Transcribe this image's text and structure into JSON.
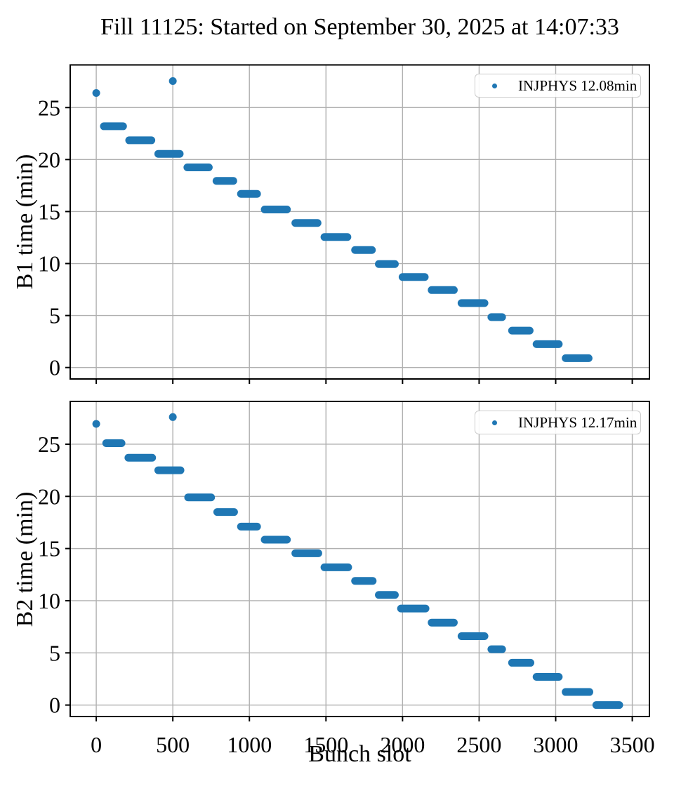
{
  "figure": {
    "title": "Fill 11125: Started on September 30, 2025 at 14:07:33",
    "background_color": "#ffffff",
    "accent_color": "#1f77b4",
    "grid_color": "#b0b0b0",
    "spine_color": "#000000"
  },
  "chart_data": [
    {
      "type": "scatter",
      "subplot": "top",
      "ylabel": "B1 time (min)",
      "xlabel": "",
      "legend_label": "INJPHYS 12.08min",
      "legend_position": "upper right",
      "grid": true,
      "marker_color": "#1f77b4",
      "xlim": [
        -170,
        3612
      ],
      "ylim": [
        -1.1,
        29.1
      ],
      "x_ticks": [
        0,
        500,
        1000,
        1500,
        2000,
        2500,
        3000,
        3500
      ],
      "y_ticks": [
        0,
        5,
        10,
        15,
        20,
        25
      ],
      "lone_points": [
        [
          0,
          26.4
        ],
        [
          500,
          27.55
        ]
      ],
      "steps": [
        [
          50,
          175,
          23.2
        ],
        [
          215,
          360,
          21.85
        ],
        [
          405,
          545,
          20.55
        ],
        [
          595,
          735,
          19.25
        ],
        [
          785,
          895,
          17.95
        ],
        [
          945,
          1050,
          16.7
        ],
        [
          1100,
          1245,
          15.2
        ],
        [
          1300,
          1445,
          13.9
        ],
        [
          1490,
          1640,
          12.55
        ],
        [
          1690,
          1800,
          11.3
        ],
        [
          1845,
          1950,
          9.95
        ],
        [
          2000,
          2145,
          8.7
        ],
        [
          2190,
          2335,
          7.45
        ],
        [
          2385,
          2535,
          6.2
        ],
        [
          2580,
          2650,
          4.85
        ],
        [
          2715,
          2830,
          3.55
        ],
        [
          2875,
          3020,
          2.25
        ],
        [
          3065,
          3215,
          0.9
        ]
      ]
    },
    {
      "type": "scatter",
      "subplot": "bottom",
      "ylabel": "B2 time (min)",
      "xlabel": "Bunch slot",
      "legend_label": "INJPHYS 12.17min",
      "legend_position": "upper right",
      "grid": true,
      "marker_color": "#1f77b4",
      "xlim": [
        -170,
        3612
      ],
      "ylim": [
        -1.1,
        29.1
      ],
      "x_ticks": [
        0,
        500,
        1000,
        1500,
        2000,
        2500,
        3000,
        3500
      ],
      "y_ticks": [
        0,
        5,
        10,
        15,
        20,
        25
      ],
      "lone_points": [
        [
          0,
          26.95
        ],
        [
          500,
          27.6
        ]
      ],
      "steps": [
        [
          65,
          165,
          25.1
        ],
        [
          210,
          365,
          23.7
        ],
        [
          405,
          550,
          22.5
        ],
        [
          600,
          750,
          19.9
        ],
        [
          790,
          900,
          18.5
        ],
        [
          945,
          1050,
          17.1
        ],
        [
          1100,
          1245,
          15.85
        ],
        [
          1300,
          1450,
          14.55
        ],
        [
          1490,
          1645,
          13.2
        ],
        [
          1690,
          1805,
          11.9
        ],
        [
          1845,
          1950,
          10.55
        ],
        [
          1990,
          2150,
          9.25
        ],
        [
          2190,
          2335,
          7.9
        ],
        [
          2385,
          2535,
          6.6
        ],
        [
          2580,
          2650,
          5.35
        ],
        [
          2715,
          2835,
          4.05
        ],
        [
          2875,
          3020,
          2.7
        ],
        [
          3065,
          3220,
          1.25
        ],
        [
          3265,
          3415,
          0.0
        ]
      ]
    }
  ]
}
